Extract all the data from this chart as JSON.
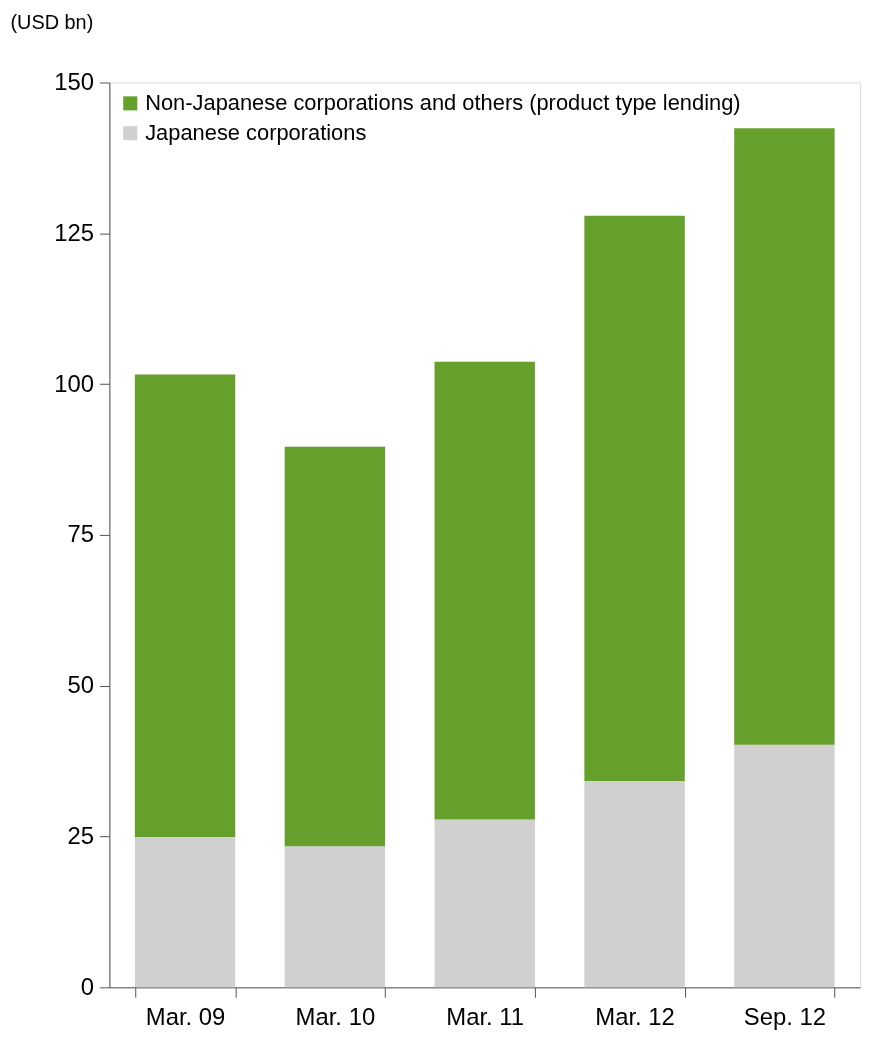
{
  "chart_data": {
    "type": "bar",
    "stacked": true,
    "ylabel": "(USD bn)",
    "categories": [
      "Mar. 09",
      "Mar. 10",
      "Mar. 11",
      "Mar. 12",
      "Sep. 12"
    ],
    "series": [
      {
        "name": "Japanese corporations",
        "color": "#d0d0d0",
        "values": [
          24.9,
          23.4,
          27.8,
          34.2,
          40.2
        ]
      },
      {
        "name": "Non-Japanese corporations and others (product type lending)",
        "color": "#66a02c",
        "values": [
          76.7,
          66.2,
          75.9,
          93.7,
          102.2
        ]
      }
    ],
    "ylim": [
      0,
      150
    ],
    "yticks": [
      0,
      25,
      50,
      75,
      100,
      125,
      150
    ],
    "grid": false,
    "legend": "top left"
  }
}
